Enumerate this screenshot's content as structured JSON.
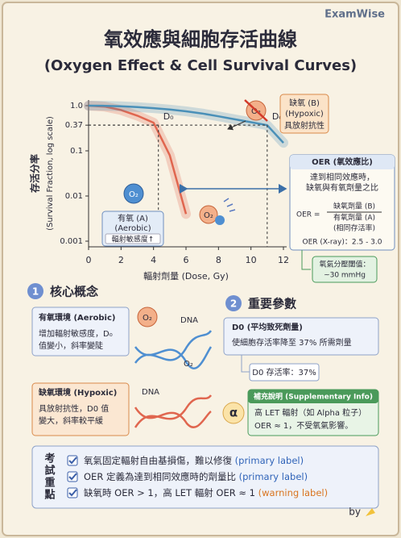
{
  "brand": "ExamWise",
  "header": {
    "title": "氧效應與細胞存活曲線",
    "subtitle": "(Oxygen Effect & Cell Survival Curves)"
  },
  "chart_data": {
    "type": "line",
    "y_label": "存活分率",
    "y_label_sub": "(Survival Fraction, log scale)",
    "x_label": "輻射劑量 (Dose, Gy)",
    "x": [
      0,
      1,
      2,
      3,
      4,
      5,
      6,
      7,
      8,
      9,
      10,
      11,
      12
    ],
    "series": [
      {
        "name": "有氧 (A)",
        "color": "#e0664f",
        "values": [
          1,
          0.95,
          0.8,
          0.6,
          0.42,
          0.08,
          0.004,
          null,
          null,
          null,
          null,
          null,
          null
        ]
      },
      {
        "name": "缺氧 (B)",
        "color": "#4a90b8",
        "values": [
          1,
          0.99,
          0.97,
          0.93,
          0.88,
          0.82,
          0.75,
          0.67,
          0.58,
          0.5,
          0.43,
          0.37,
          0.15
        ]
      }
    ],
    "xlim": [
      0,
      12
    ],
    "xticks": [
      0,
      2,
      4,
      6,
      8,
      10,
      12
    ],
    "ylim": [
      0.001,
      1
    ],
    "log_y": true,
    "yticks": [
      {
        "value": 1,
        "label": "1.0"
      },
      0.1,
      0.37,
      0.01,
      0.001
    ],
    "d0_markers": [
      {
        "label": "D₀",
        "x": 4.3,
        "y": 0.37
      },
      {
        "label": "D₀",
        "x": 11,
        "y": 0.37
      }
    ]
  },
  "annotations": {
    "aerobic": {
      "sub": "(Aerobic)",
      "note": "輻射敏感度↑",
      "icon": "O₂"
    },
    "hypoxic": {
      "sub": "(Hypoxic)",
      "note": "具放射抗性",
      "icon": "O₂"
    },
    "oer": {
      "title": "OER (氧效應比)",
      "lines": [
        "達到相同效應時，",
        "缺氧與有氧劑量之比"
      ],
      "eq": "OER =",
      "num": "缺氧劑量 (B)",
      "den": "有氧劑量 (A)",
      "den_sub": "(相同存活率)",
      "xray": "OER (X-ray)：2.5 - 3.0"
    },
    "threshold": [
      "氧氣分壓閾值：",
      "~30 mmHg"
    ],
    "free_radical": "O₂"
  },
  "section1": {
    "number": "1",
    "title": "核心概念",
    "aerobic": {
      "head": "有氧環境 (Aerobic)",
      "lines": [
        "增加輻射敏感度，D₀",
        "值變小，斜率變陡"
      ]
    },
    "hypoxic": {
      "head": "缺氧環境 (Hypoxic)",
      "lines": [
        "具放射抗性，D0 值",
        "變大，斜率較平緩"
      ]
    },
    "icon_o2": "O₂",
    "dna1": "DNA",
    "o2_bound": "O₂",
    "dna2": "DNA"
  },
  "section2": {
    "number": "2",
    "title": "重要參數",
    "d0": {
      "head": "D0 (平均致死劑量)",
      "text": "使細胞存活率降至 37% 所需劑量"
    },
    "d0_rate": "D0 存活率：37%",
    "alpha": "α",
    "supp": {
      "head": "補充說明 (Supplementary Info)",
      "lines": [
        "高 LET 輻射（如 Alpha 粒子）",
        "OER ≈ 1，不受氧氣影響。"
      ]
    }
  },
  "exam": {
    "title": "考試重點",
    "items": [
      {
        "text": "氧氣固定輻射自由基損傷，難以修復 ",
        "tag": "(primary label)"
      },
      {
        "text": "OER 定義為達到相同效應時的劑量比 ",
        "tag": "(primary label)"
      },
      {
        "text": "缺氧時 OER > 1，高 LET 輻射 OER ≈ 1 ",
        "tag": "(warning label)"
      }
    ]
  },
  "footer": "by"
}
